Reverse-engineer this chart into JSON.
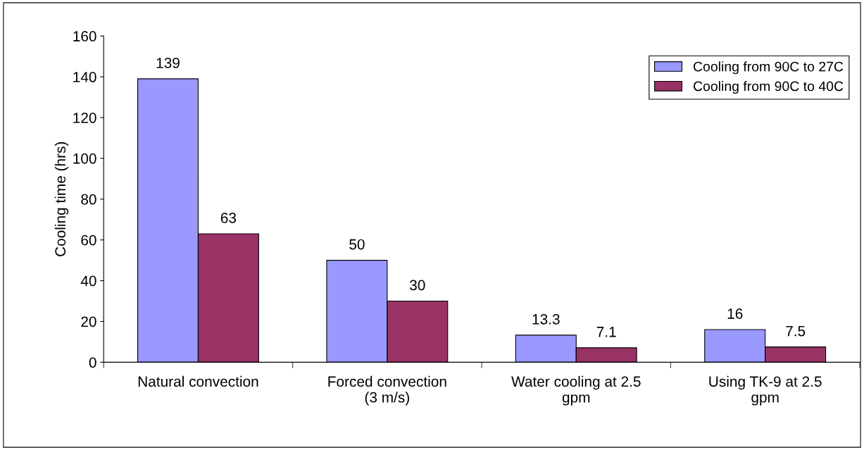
{
  "chart_data": {
    "type": "bar",
    "ylabel": "Cooling time (hrs)",
    "categories": [
      "Natural convection",
      "Forced convection\n(3 m/s)",
      "Water cooling at 2.5\ngpm",
      "Using TK-9 at 2.5\ngpm"
    ],
    "series": [
      {
        "name": "Cooling from 90C to 27C",
        "color": "#9999ff",
        "values": [
          139,
          50,
          13.3,
          16
        ]
      },
      {
        "name": "Cooling from 90C to 40C",
        "color": "#993366",
        "values": [
          63,
          30,
          7.1,
          7.5
        ]
      }
    ],
    "ylim": [
      0,
      160
    ],
    "yticks": [
      0,
      20,
      40,
      60,
      80,
      100,
      120,
      140,
      160
    ],
    "data_labels": true,
    "legend": "top right",
    "grid": false
  }
}
